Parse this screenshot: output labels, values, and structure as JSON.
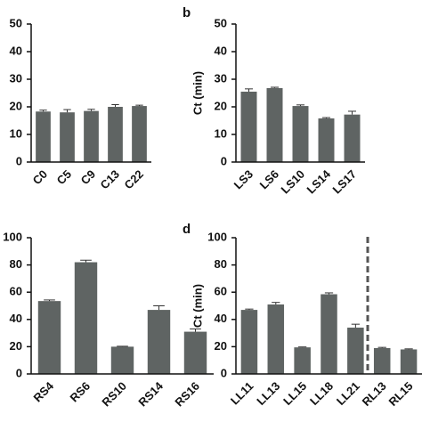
{
  "chart_data": [
    {
      "type": "bar",
      "categories": [
        "C0",
        "C5",
        "C9",
        "C13",
        "C22"
      ],
      "values": [
        18.3,
        18,
        18.5,
        20,
        20.3
      ],
      "errors": [
        0.5,
        1,
        0.6,
        0.8,
        0.3
      ],
      "color": "#5f6463",
      "ylim": [
        0,
        50
      ],
      "yticks": [
        0,
        10,
        20,
        30,
        40,
        50
      ]
    },
    {
      "type": "bar",
      "panel_label": "b",
      "ylabel": "Ct (min)",
      "categories": [
        "LS3",
        "LS6",
        "LS10",
        "LS14",
        "LS17"
      ],
      "values": [
        25.5,
        26.8,
        20.3,
        15.8,
        17.2
      ],
      "errors": [
        1,
        0.3,
        0.4,
        0.3,
        1.2
      ],
      "color": "#5f6463",
      "ylim": [
        0,
        50
      ],
      "yticks": [
        0,
        10,
        20,
        30,
        40,
        50
      ]
    },
    {
      "type": "bar",
      "categories": [
        "RS4",
        "RS6",
        "RS10",
        "RS14",
        "RS16"
      ],
      "values": [
        53.5,
        82,
        20,
        47,
        31
      ],
      "errors": [
        0.8,
        1.5,
        0.3,
        3,
        2
      ],
      "color": "#5f6463",
      "ylim": [
        0,
        100
      ],
      "yticks": [
        0,
        20,
        40,
        60,
        80,
        100
      ]
    },
    {
      "type": "bar",
      "panel_label": "d",
      "ylabel": "Ct (min)",
      "categories": [
        "LL11",
        "LL13",
        "LL15",
        "LL18",
        "LL21",
        "RL13",
        "RL15"
      ],
      "values": [
        47,
        51,
        19.5,
        58.5,
        34,
        19,
        18
      ],
      "errors": [
        0.6,
        1.5,
        0.3,
        1,
        2.5,
        0.5,
        0.4
      ],
      "color": "#5f6463",
      "ylim": [
        0,
        100
      ],
      "yticks": [
        0,
        20,
        40,
        60,
        80,
        100
      ]
    }
  ]
}
